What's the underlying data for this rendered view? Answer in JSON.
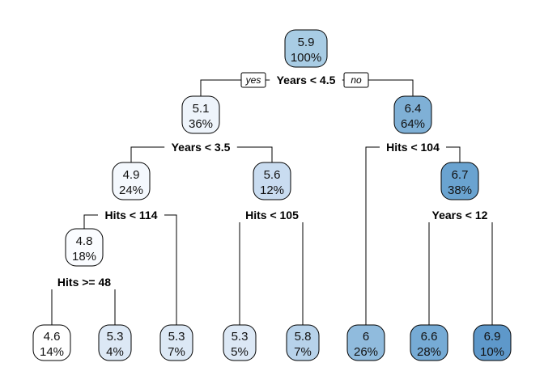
{
  "tree": {
    "branch_labels": {
      "yes": "yes",
      "no": "no"
    },
    "nodes": [
      {
        "id": "root",
        "value": "5.9",
        "percent": "100%",
        "color": "#a8cce4"
      },
      {
        "id": "n2",
        "value": "5.1",
        "percent": "36%",
        "color": "#eef4fb"
      },
      {
        "id": "n3",
        "value": "6.4",
        "percent": "64%",
        "color": "#7fb0d6"
      },
      {
        "id": "n4",
        "value": "4.9",
        "percent": "24%",
        "color": "#f4f8fd"
      },
      {
        "id": "n5",
        "value": "5.6",
        "percent": "12%",
        "color": "#c9dcf0"
      },
      {
        "id": "n7",
        "value": "6.7",
        "percent": "38%",
        "color": "#6aa3d0"
      },
      {
        "id": "n8",
        "value": "4.8",
        "percent": "18%",
        "color": "#fafcff"
      },
      {
        "id": "leaf1",
        "value": "4.6",
        "percent": "14%",
        "color": "#ffffff"
      },
      {
        "id": "leaf2",
        "value": "5.3",
        "percent": "4%",
        "color": "#dce8f5"
      },
      {
        "id": "leaf3",
        "value": "5.3",
        "percent": "7%",
        "color": "#dce8f5"
      },
      {
        "id": "leaf4",
        "value": "5.3",
        "percent": "5%",
        "color": "#dce8f5"
      },
      {
        "id": "leaf5",
        "value": "5.8",
        "percent": "7%",
        "color": "#b7d2ea"
      },
      {
        "id": "leaf6",
        "value": "6",
        "percent": "26%",
        "color": "#90bbdd"
      },
      {
        "id": "leaf7",
        "value": "6.6",
        "percent": "28%",
        "color": "#76abd5"
      },
      {
        "id": "leaf8",
        "value": "6.9",
        "percent": "10%",
        "color": "#5e98ca"
      }
    ],
    "splits": [
      {
        "id": "s_root",
        "label": "Years < 4.5"
      },
      {
        "id": "s_n2",
        "label": "Years < 3.5"
      },
      {
        "id": "s_n3",
        "label": "Hits < 104"
      },
      {
        "id": "s_n4",
        "label": "Hits < 114"
      },
      {
        "id": "s_n5",
        "label": "Hits < 105"
      },
      {
        "id": "s_n7",
        "label": "Years < 12"
      },
      {
        "id": "s_n8",
        "label": "Hits >= 48"
      }
    ]
  }
}
